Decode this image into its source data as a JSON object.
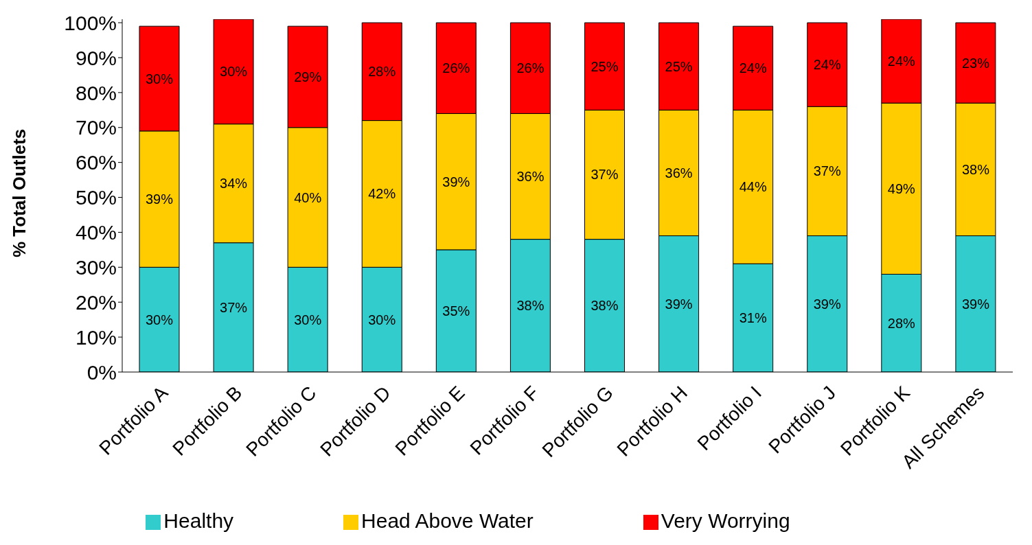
{
  "chart_data": {
    "type": "bar",
    "stacked": true,
    "ylabel": "% Total Outlets",
    "categories": [
      "Portfolio A",
      "Portfolio B",
      "Portfolio C",
      "Portfolio D",
      "Portfolio E",
      "Portfolio F",
      "Portfolio G",
      "Portfolio H",
      "Portfolio I",
      "Portfolio J",
      "Portfolio K",
      "All Schemes"
    ],
    "series": [
      {
        "name": "Healthy",
        "color": "#33cccc",
        "values": [
          30,
          37,
          30,
          30,
          35,
          38,
          38,
          39,
          31,
          39,
          28,
          39
        ],
        "value_labels": [
          "30%",
          "37%",
          "30%",
          "30%",
          "35%",
          "38%",
          "38%",
          "39%",
          "31%",
          "39%",
          "28%",
          "39%"
        ]
      },
      {
        "name": "Head Above Water",
        "color": "#ffcc00",
        "values": [
          39,
          34,
          40,
          42,
          39,
          36,
          37,
          36,
          44,
          37,
          49,
          38
        ],
        "value_labels": [
          "39%",
          "34%",
          "40%",
          "42%",
          "39%",
          "36%",
          "37%",
          "36%",
          "44%",
          "37%",
          "49%",
          "38%"
        ]
      },
      {
        "name": "Very Worrying",
        "color": "#ff0000",
        "values": [
          30,
          30,
          29,
          28,
          26,
          26,
          25,
          25,
          24,
          24,
          24,
          23
        ],
        "value_labels": [
          "30%",
          "30%",
          "29%",
          "28%",
          "26%",
          "26%",
          "25%",
          "25%",
          "24%",
          "24%",
          "24%",
          "23%"
        ]
      }
    ],
    "ylim": [
      0,
      101
    ],
    "yticks": [
      {
        "value": 0,
        "label": "0%"
      },
      {
        "value": 10,
        "label": "10%"
      },
      {
        "value": 20,
        "label": "20%"
      },
      {
        "value": 30,
        "label": "30%"
      },
      {
        "value": 40,
        "label": "40%"
      },
      {
        "value": 50,
        "label": "50%"
      },
      {
        "value": 60,
        "label": "60%"
      },
      {
        "value": 70,
        "label": "70%"
      },
      {
        "value": 80,
        "label": "80%"
      },
      {
        "value": 90,
        "label": "90%"
      },
      {
        "value": 100,
        "label": "100%"
      }
    ],
    "grid": false,
    "legend": "bottom"
  }
}
